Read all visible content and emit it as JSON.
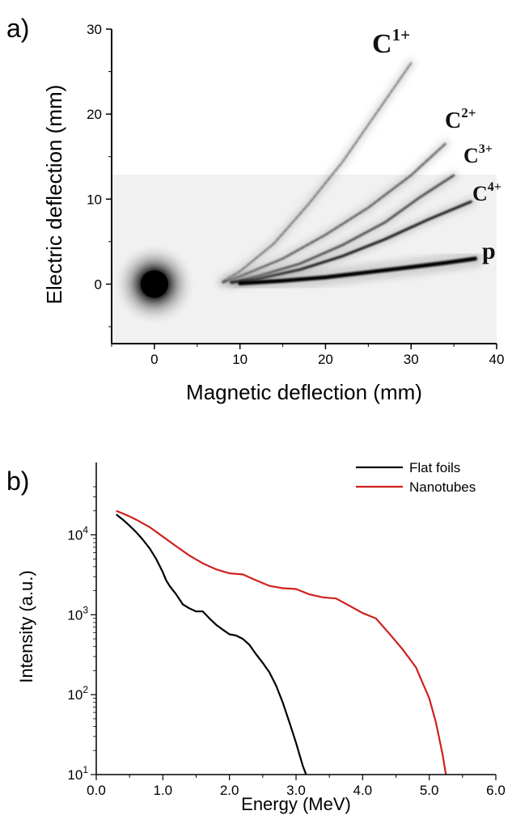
{
  "chart_data": [
    {
      "panel": "a)",
      "type": "scatter",
      "xlabel": "Magnetic deflection (mm)",
      "ylabel": "Electric deflection (mm)",
      "xlim": [
        -5,
        40
      ],
      "ylim": [
        -7,
        30
      ],
      "xticks": [
        0,
        10,
        20,
        30,
        40
      ],
      "yticks": [
        0,
        10,
        20,
        30
      ],
      "zero_point": {
        "x": 0,
        "y": 0
      },
      "tracks": [
        {
          "name": "C1+",
          "label_main": "C",
          "label_sup": "1+",
          "x": [
            8,
            10,
            14,
            18,
            22,
            26,
            30
          ],
          "y": [
            0.3,
            1.5,
            4.8,
            9.4,
            14.4,
            20.2,
            26.0
          ],
          "darkness": 0.35
        },
        {
          "name": "C2+",
          "label_main": "C",
          "label_sup": "2+",
          "x": [
            8,
            10,
            15,
            20,
            25,
            30,
            34
          ],
          "y": [
            0.2,
            0.9,
            3.0,
            5.8,
            9.0,
            12.8,
            16.5
          ],
          "darkness": 0.5
        },
        {
          "name": "C3+",
          "label_main": "C",
          "label_sup": "3+",
          "x": [
            9,
            12,
            17,
            22,
            27,
            31,
            35
          ],
          "y": [
            0.2,
            0.9,
            2.4,
            4.6,
            7.3,
            10.2,
            12.8
          ],
          "darkness": 0.6
        },
        {
          "name": "C4+",
          "label_main": "C",
          "label_sup": "4+",
          "x": [
            9,
            12,
            17,
            22,
            27,
            32,
            37
          ],
          "y": [
            0.2,
            0.6,
            1.7,
            3.3,
            5.3,
            7.6,
            9.7
          ],
          "darkness": 0.85
        },
        {
          "name": "p",
          "label_main": "p",
          "label_sup": "",
          "x": [
            10,
            15,
            20,
            25,
            30,
            34,
            37.5
          ],
          "y": [
            0.1,
            0.4,
            0.8,
            1.4,
            2.0,
            2.5,
            3.0
          ],
          "darkness": 1.0
        }
      ]
    },
    {
      "panel": "b)",
      "type": "line",
      "xlabel": "Energy (MeV)",
      "ylabel": "Intensity (a.u.)",
      "xlim": [
        0.0,
        6.0
      ],
      "ylim": [
        10,
        40000
      ],
      "yscale": "log",
      "xticks": [
        "0.0",
        "1.0",
        "2.0",
        "3.0",
        "4.0",
        "5.0",
        "6.0"
      ],
      "yticks": [
        {
          "base": "10",
          "exp": "1",
          "value": 10
        },
        {
          "base": "10",
          "exp": "2",
          "value": 100
        },
        {
          "base": "10",
          "exp": "3",
          "value": 1000
        },
        {
          "base": "10",
          "exp": "4",
          "value": 10000
        }
      ],
      "legend_position": "top-right",
      "series": [
        {
          "name": "Flat foils",
          "color": "#000000",
          "x": [
            0.3,
            0.4,
            0.5,
            0.6,
            0.7,
            0.8,
            0.9,
            1.0,
            1.05,
            1.1,
            1.2,
            1.3,
            1.4,
            1.5,
            1.6,
            1.7,
            1.8,
            1.9,
            2.0,
            2.1,
            2.2,
            2.3,
            2.4,
            2.5,
            2.6,
            2.7,
            2.8,
            2.9,
            3.0,
            3.05,
            3.1,
            3.15
          ],
          "y": [
            18000,
            15500,
            13000,
            10800,
            8700,
            6800,
            5000,
            3400,
            2700,
            2300,
            1800,
            1350,
            1200,
            1100,
            1100,
            900,
            750,
            650,
            570,
            550,
            500,
            420,
            320,
            250,
            190,
            130,
            80,
            45,
            25,
            18,
            13,
            10
          ]
        },
        {
          "name": "Nanotubes",
          "color": "#d0201f",
          "x": [
            0.3,
            0.4,
            0.5,
            0.6,
            0.8,
            1.0,
            1.2,
            1.4,
            1.6,
            1.8,
            2.0,
            2.2,
            2.4,
            2.6,
            2.8,
            3.0,
            3.2,
            3.4,
            3.6,
            3.8,
            4.0,
            4.2,
            4.4,
            4.6,
            4.8,
            5.0,
            5.1,
            5.2,
            5.25
          ],
          "y": [
            20000,
            18500,
            17000,
            15500,
            12500,
            9500,
            7200,
            5500,
            4400,
            3700,
            3300,
            3200,
            2700,
            2300,
            2150,
            2100,
            1800,
            1650,
            1600,
            1300,
            1050,
            900,
            580,
            370,
            220,
            90,
            45,
            18,
            10
          ]
        }
      ]
    }
  ]
}
